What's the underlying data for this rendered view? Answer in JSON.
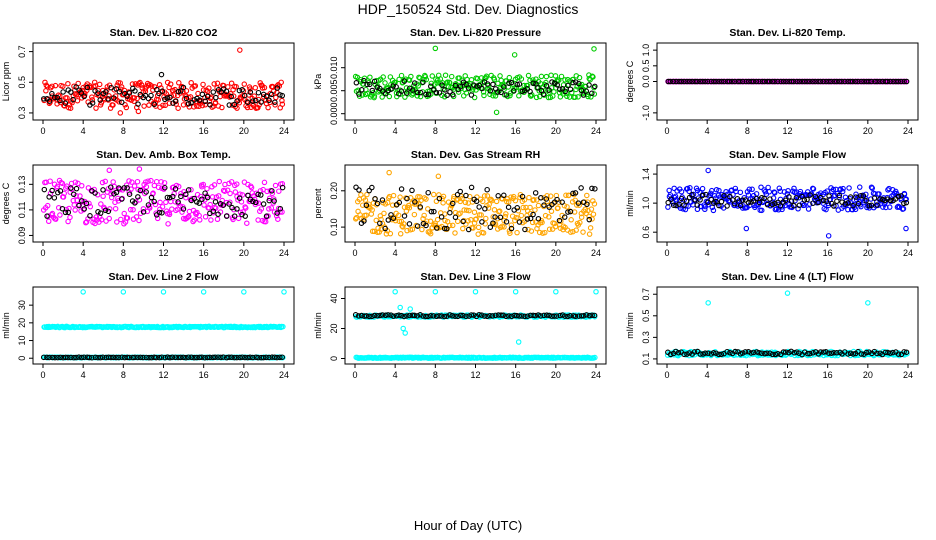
{
  "page": {
    "title": "HDP_150524  Std. Dev. Diagnostics",
    "xlabel": "Hour of Day (UTC)"
  },
  "chart_data": [
    {
      "type": "scatter",
      "title": "Stan. Dev. Li-820 CO2",
      "ylabel": "Licor ppm",
      "x_ticks": [
        "0",
        "4",
        "8",
        "12",
        "16",
        "20",
        "24"
      ],
      "y_ticks": [
        "0.3",
        "0.5",
        "0.7"
      ],
      "xlim": [
        0,
        24
      ],
      "ylim": [
        0.28,
        0.73
      ],
      "grid": false,
      "series": [
        {
          "color": "#ff0000",
          "y_band": [
            0.33,
            0.5
          ],
          "outliers": [
            [
              19.6,
              0.71
            ],
            [
              9.5,
              0.31
            ],
            [
              7.7,
              0.3
            ]
          ],
          "n": 280
        },
        {
          "color": "#000000",
          "y_band": [
            0.35,
            0.47
          ],
          "outliers": [
            [
              11.8,
              0.55
            ]
          ],
          "n": 90
        }
      ]
    },
    {
      "type": "scatter",
      "title": "Stan. Dev. Li-820 Pressure",
      "ylabel": "kPa",
      "x_ticks": [
        "0",
        "4",
        "8",
        "12",
        "16",
        "20",
        "24"
      ],
      "y_ticks": [
        "0.000",
        "0.005",
        "0.010"
      ],
      "xlim": [
        0,
        24
      ],
      "ylim": [
        -0.0005,
        0.0145
      ],
      "grid": false,
      "series": [
        {
          "color": "#00cc00",
          "y_band": [
            0.0035,
            0.0085
          ],
          "outliers": [
            [
              8,
              0.0142
            ],
            [
              15.9,
              0.0128
            ],
            [
              23.8,
              0.0141
            ],
            [
              14.1,
              0.0003
            ]
          ],
          "n": 280
        },
        {
          "color": "#000000",
          "y_band": [
            0.004,
            0.0072
          ],
          "outliers": [],
          "n": 90
        }
      ]
    },
    {
      "type": "scatter",
      "title": "Stan. Dev. Li-820 Temp.",
      "ylabel": "degrees C",
      "x_ticks": [
        "0",
        "4",
        "8",
        "12",
        "16",
        "20",
        "24"
      ],
      "y_ticks": [
        "-1.0",
        "0.0",
        "0.5",
        "1.0"
      ],
      "xlim": [
        0,
        24
      ],
      "ylim": [
        -1.1,
        1.1
      ],
      "grid": false,
      "series": [
        {
          "color": "#ff00ff",
          "y_band": [
            0.0,
            0.0
          ],
          "outliers": [],
          "n": 240
        },
        {
          "color": "#000000",
          "y_band": [
            0.0,
            0.0
          ],
          "outliers": [],
          "n": 90
        }
      ]
    },
    {
      "type": "scatter",
      "title": "Stan. Dev. Amb. Box Temp.",
      "ylabel": "degrees C",
      "x_ticks": [
        "0",
        "4",
        "8",
        "12",
        "16",
        "20",
        "24"
      ],
      "y_ticks": [
        "0.09",
        "0.11",
        "0.13"
      ],
      "xlim": [
        0,
        24
      ],
      "ylim": [
        0.088,
        0.142
      ],
      "grid": false,
      "series": [
        {
          "color": "#ff00ff",
          "y_band": [
            0.099,
            0.133
          ],
          "outliers": [
            [
              6.6,
              0.141
            ],
            [
              9.6,
              0.142
            ]
          ],
          "n": 280
        },
        {
          "color": "#000000",
          "y_band": [
            0.105,
            0.128
          ],
          "outliers": [],
          "n": 90
        }
      ]
    },
    {
      "type": "scatter",
      "title": "Stan. Dev. Gas Stream RH",
      "ylabel": "percent",
      "x_ticks": [
        "0",
        "4",
        "8",
        "12",
        "16",
        "20",
        "24"
      ],
      "y_ticks": [
        "0.10",
        "0.20"
      ],
      "xlim": [
        0,
        24
      ],
      "ylim": [
        0.07,
        0.26
      ],
      "grid": false,
      "series": [
        {
          "color": "#ffa500",
          "y_band": [
            0.08,
            0.19
          ],
          "outliers": [
            [
              3.4,
              0.25
            ],
            [
              8.3,
              0.24
            ]
          ],
          "n": 300
        },
        {
          "color": "#000000",
          "y_band": [
            0.09,
            0.21
          ],
          "outliers": [],
          "n": 90
        }
      ]
    },
    {
      "type": "scatter",
      "title": "Stan. Dev. Sample Flow",
      "ylabel": "ml/min",
      "x_ticks": [
        "0",
        "4",
        "8",
        "12",
        "16",
        "20",
        "24"
      ],
      "y_ticks": [
        "0.6",
        "1.0",
        "1.4"
      ],
      "xlim": [
        0,
        24
      ],
      "ylim": [
        0.52,
        1.47
      ],
      "grid": false,
      "series": [
        {
          "color": "#0000ff",
          "y_band": [
            0.9,
            1.22
          ],
          "outliers": [
            [
              4.1,
              1.45
            ],
            [
              16.1,
              0.55
            ],
            [
              23.8,
              0.65
            ],
            [
              7.9,
              0.65
            ]
          ],
          "n": 280
        },
        {
          "color": "#000000",
          "y_band": [
            0.96,
            1.12
          ],
          "outliers": [],
          "n": 90
        }
      ]
    },
    {
      "type": "scatter",
      "title": "Stan. Dev. Line 2 Flow",
      "ylabel": "ml/min",
      "x_ticks": [
        "0",
        "4",
        "8",
        "12",
        "16",
        "20",
        "24"
      ],
      "y_ticks": [
        "0",
        "10",
        "20",
        "30"
      ],
      "xlim": [
        0,
        24
      ],
      "ylim": [
        -1,
        38
      ],
      "grid": false,
      "series": [
        {
          "color": "#00ffff",
          "y_band": [
            17.3,
            18.0
          ],
          "outliers": [
            [
              4,
              37.5
            ],
            [
              8,
              37.5
            ],
            [
              12,
              37.5
            ],
            [
              16,
              37.5
            ],
            [
              20,
              37.5
            ],
            [
              24,
              37.5
            ]
          ],
          "n": 240
        },
        {
          "color": "#00ffff",
          "y_band": [
            0.3,
            0.6
          ],
          "outliers": [],
          "n": 240
        },
        {
          "color": "#000000",
          "y_band": [
            0.3,
            0.6
          ],
          "outliers": [],
          "n": 90
        }
      ]
    },
    {
      "type": "scatter",
      "title": "Stan. Dev. Line 3 Flow",
      "ylabel": "ml/min",
      "x_ticks": [
        "0",
        "4",
        "8",
        "12",
        "16",
        "20",
        "24"
      ],
      "y_ticks": [
        "0",
        "20",
        "40"
      ],
      "xlim": [
        0,
        24
      ],
      "ylim": [
        -1,
        45
      ],
      "grid": false,
      "series": [
        {
          "color": "#00ffff",
          "y_band": [
            27.5,
            29.0
          ],
          "outliers": [
            [
              4,
              44.5
            ],
            [
              8,
              44.5
            ],
            [
              12,
              44.5
            ],
            [
              16,
              44.5
            ],
            [
              20,
              44.5
            ],
            [
              24,
              44.5
            ],
            [
              16.3,
              11
            ],
            [
              5.0,
              17
            ],
            [
              4.5,
              34
            ],
            [
              5.5,
              33
            ],
            [
              4.8,
              20
            ]
          ],
          "n": 240
        },
        {
          "color": "#00ffff",
          "y_band": [
            0.2,
            0.8
          ],
          "outliers": [],
          "n": 240
        },
        {
          "color": "#000000",
          "y_band": [
            28.0,
            29.2
          ],
          "outliers": [],
          "n": 90
        }
      ]
    },
    {
      "type": "scatter",
      "title": "Stan. Dev. Line 4 (LT) Flow",
      "ylabel": "ml/min",
      "x_ticks": [
        "0",
        "4",
        "8",
        "12",
        "16",
        "20",
        "24"
      ],
      "y_ticks": [
        "0.1",
        "0.3",
        "0.5",
        "0.7"
      ],
      "xlim": [
        0,
        24
      ],
      "ylim": [
        0.09,
        0.73
      ],
      "grid": false,
      "series": [
        {
          "color": "#00ffff",
          "y_band": [
            0.13,
            0.17
          ],
          "outliers": [
            [
              4.1,
              0.62
            ],
            [
              12,
              0.71
            ],
            [
              20,
              0.62
            ]
          ],
          "n": 240
        },
        {
          "color": "#000000",
          "y_band": [
            0.14,
            0.17
          ],
          "outliers": [],
          "n": 90
        }
      ]
    }
  ]
}
